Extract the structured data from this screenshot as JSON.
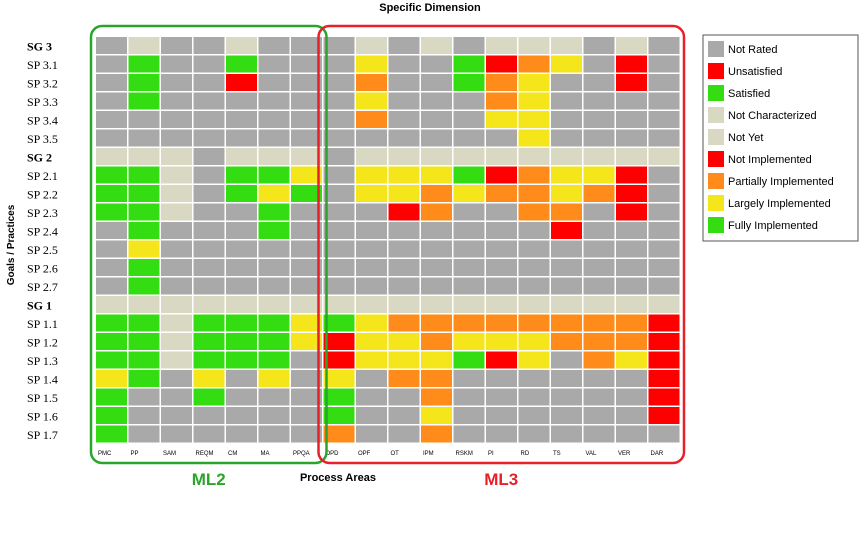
{
  "chart_data": {
    "type": "heatmap",
    "title": "Specific Dimension",
    "xlabel": "Process Areas",
    "ylabel": "Goals / Practices",
    "groups": [
      {
        "label": "ML2",
        "columns": [
          "PMC",
          "PP",
          "SAM",
          "REQM",
          "CM",
          "MA",
          "PPQA"
        ],
        "color": "#2aa52a"
      },
      {
        "label": "ML3",
        "columns": [
          "OPD",
          "OPF",
          "OT",
          "IPM",
          "RSKM",
          "PI",
          "RD",
          "TS",
          "VAL",
          "VER",
          "DAR"
        ],
        "color": "#e8202a"
      }
    ],
    "columns": [
      "PMC",
      "PP",
      "SAM",
      "REQM",
      "CM",
      "MA",
      "PPQA",
      "OPD",
      "OPF",
      "OT",
      "IPM",
      "RSKM",
      "PI",
      "RD",
      "TS",
      "VAL",
      "VER",
      "DAR"
    ],
    "rows": [
      "SG 3",
      "SP 3.1",
      "SP 3.2",
      "SP 3.3",
      "SP 3.4",
      "SP 3.5",
      "SG 2",
      "SP 2.1",
      "SP 2.2",
      "SP 2.3",
      "SP 2.4",
      "SP 2.5",
      "SP 2.6",
      "SP 2.7",
      "SG 1",
      "SP 1.1",
      "SP 1.2",
      "SP 1.3",
      "SP 1.4",
      "SP 1.5",
      "SP 1.6",
      "SP 1.7"
    ],
    "goal_rows": [
      "SG 3",
      "SG 2",
      "SG 1"
    ],
    "legend": [
      {
        "code": "NR",
        "label": "Not Rated",
        "color": "#a9a9a9"
      },
      {
        "code": "U",
        "label": "Unsatisfied",
        "color": "#ff0000"
      },
      {
        "code": "S",
        "label": "Satisfied",
        "color": "#33dd11"
      },
      {
        "code": "NC",
        "label": "Not Characterized",
        "color": "#d9d9c3"
      },
      {
        "code": "NY",
        "label": "Not Yet",
        "color": "#d9d9c3"
      },
      {
        "code": "N",
        "label": "Not Implemented",
        "color": "#ff0000"
      },
      {
        "code": "P",
        "label": "Partially Implemented",
        "color": "#ff8c1a"
      },
      {
        "code": "L",
        "label": "Largely Implemented",
        "color": "#f5e51b"
      },
      {
        "code": "F",
        "label": "Fully Implemented",
        "color": "#33dd11"
      }
    ],
    "values": [
      [
        "NR",
        "NC",
        "NR",
        "NR",
        "NC",
        "NR",
        "NR",
        "NR",
        "NC",
        "NR",
        "NC",
        "NR",
        "NC",
        "NC",
        "NC",
        "NR",
        "NC",
        "NR"
      ],
      [
        "NR",
        "F",
        "NR",
        "NR",
        "F",
        "NR",
        "NR",
        "NR",
        "L",
        "NR",
        "NR",
        "F",
        "N",
        "P",
        "L",
        "NR",
        "N",
        "NR"
      ],
      [
        "NR",
        "F",
        "NR",
        "NR",
        "N",
        "NR",
        "NR",
        "NR",
        "P",
        "NR",
        "NR",
        "F",
        "P",
        "L",
        "NR",
        "NR",
        "N",
        "NR"
      ],
      [
        "NR",
        "F",
        "NR",
        "NR",
        "NR",
        "NR",
        "NR",
        "NR",
        "L",
        "NR",
        "NR",
        "NR",
        "P",
        "L",
        "NR",
        "NR",
        "NR",
        "NR"
      ],
      [
        "NR",
        "NR",
        "NR",
        "NR",
        "NR",
        "NR",
        "NR",
        "NR",
        "P",
        "NR",
        "NR",
        "NR",
        "L",
        "L",
        "NR",
        "NR",
        "NR",
        "NR"
      ],
      [
        "NR",
        "NR",
        "NR",
        "NR",
        "NR",
        "NR",
        "NR",
        "NR",
        "NR",
        "NR",
        "NR",
        "NR",
        "NR",
        "L",
        "NR",
        "NR",
        "NR",
        "NR"
      ],
      [
        "NC",
        "NC",
        "NC",
        "NR",
        "NC",
        "NC",
        "NC",
        "NR",
        "NC",
        "NC",
        "NC",
        "NC",
        "NC",
        "NC",
        "NC",
        "NC",
        "NC",
        "NC"
      ],
      [
        "F",
        "F",
        "NC",
        "NR",
        "F",
        "F",
        "L",
        "NR",
        "L",
        "L",
        "L",
        "F",
        "N",
        "P",
        "L",
        "L",
        "N",
        "NR"
      ],
      [
        "F",
        "F",
        "NC",
        "NR",
        "F",
        "L",
        "F",
        "NR",
        "L",
        "L",
        "P",
        "L",
        "P",
        "P",
        "L",
        "P",
        "N",
        "NR"
      ],
      [
        "F",
        "F",
        "NC",
        "NR",
        "NR",
        "F",
        "NR",
        "NR",
        "NR",
        "N",
        "P",
        "NR",
        "NR",
        "P",
        "P",
        "NR",
        "N",
        "NR"
      ],
      [
        "NR",
        "F",
        "NR",
        "NR",
        "NR",
        "F",
        "NR",
        "NR",
        "NR",
        "NR",
        "NR",
        "NR",
        "NR",
        "NR",
        "N",
        "NR",
        "NR",
        "NR"
      ],
      [
        "NR",
        "L",
        "NR",
        "NR",
        "NR",
        "NR",
        "NR",
        "NR",
        "NR",
        "NR",
        "NR",
        "NR",
        "NR",
        "NR",
        "NR",
        "NR",
        "NR",
        "NR"
      ],
      [
        "NR",
        "F",
        "NR",
        "NR",
        "NR",
        "NR",
        "NR",
        "NR",
        "NR",
        "NR",
        "NR",
        "NR",
        "NR",
        "NR",
        "NR",
        "NR",
        "NR",
        "NR"
      ],
      [
        "NR",
        "F",
        "NR",
        "NR",
        "NR",
        "NR",
        "NR",
        "NR",
        "NR",
        "NR",
        "NR",
        "NR",
        "NR",
        "NR",
        "NR",
        "NR",
        "NR",
        "NR"
      ],
      [
        "NC",
        "NC",
        "NC",
        "NC",
        "NC",
        "NC",
        "NC",
        "NC",
        "NC",
        "NC",
        "NC",
        "NC",
        "NC",
        "NC",
        "NC",
        "NC",
        "NC",
        "NC"
      ],
      [
        "F",
        "F",
        "NC",
        "F",
        "F",
        "F",
        "L",
        "F",
        "L",
        "P",
        "P",
        "P",
        "P",
        "P",
        "P",
        "P",
        "P",
        "N"
      ],
      [
        "F",
        "F",
        "NC",
        "F",
        "F",
        "F",
        "L",
        "N",
        "L",
        "L",
        "P",
        "L",
        "L",
        "L",
        "P",
        "P",
        "P",
        "N"
      ],
      [
        "F",
        "F",
        "NC",
        "F",
        "F",
        "F",
        "NR",
        "N",
        "L",
        "L",
        "L",
        "F",
        "N",
        "L",
        "NR",
        "P",
        "L",
        "N"
      ],
      [
        "L",
        "F",
        "NR",
        "L",
        "NR",
        "L",
        "NR",
        "L",
        "NR",
        "P",
        "P",
        "NR",
        "NR",
        "NR",
        "NR",
        "NR",
        "NR",
        "N"
      ],
      [
        "F",
        "NR",
        "NR",
        "F",
        "NR",
        "NR",
        "NR",
        "F",
        "NR",
        "NR",
        "P",
        "NR",
        "NR",
        "NR",
        "NR",
        "NR",
        "NR",
        "N"
      ],
      [
        "F",
        "NR",
        "NR",
        "NR",
        "NR",
        "NR",
        "NR",
        "F",
        "NR",
        "NR",
        "L",
        "NR",
        "NR",
        "NR",
        "NR",
        "NR",
        "NR",
        "N"
      ],
      [
        "F",
        "NR",
        "NR",
        "NR",
        "NR",
        "NR",
        "NR",
        "P",
        "NR",
        "NR",
        "P",
        "NR",
        "NR",
        "NR",
        "NR",
        "NR",
        "NR",
        "NR"
      ]
    ]
  }
}
